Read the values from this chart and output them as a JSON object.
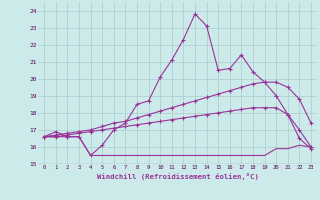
{
  "xlabel": "Windchill (Refroidissement éolien,°C)",
  "background_color": "#cceaea",
  "grid_color": "#aacccc",
  "line_color": "#993399",
  "ylim": [
    15,
    24.5
  ],
  "xlim": [
    -0.5,
    23.5
  ],
  "yticks": [
    15,
    16,
    17,
    18,
    19,
    20,
    21,
    22,
    23,
    24
  ],
  "xticks": [
    0,
    1,
    2,
    3,
    4,
    5,
    6,
    7,
    8,
    9,
    10,
    11,
    12,
    13,
    14,
    15,
    16,
    17,
    18,
    19,
    20,
    21,
    22,
    23
  ],
  "series": [
    [
      16.6,
      16.9,
      16.6,
      16.6,
      15.5,
      16.1,
      17.0,
      17.4,
      18.5,
      18.7,
      20.1,
      21.1,
      22.3,
      23.8,
      23.1,
      20.5,
      20.6,
      21.4,
      20.4,
      19.8,
      19.0,
      17.9,
      16.5,
      15.9
    ],
    [
      16.6,
      16.6,
      16.6,
      16.6,
      15.5,
      15.5,
      15.5,
      15.5,
      15.5,
      15.5,
      15.5,
      15.5,
      15.5,
      15.5,
      15.5,
      15.5,
      15.5,
      15.5,
      15.5,
      15.5,
      15.9,
      15.9,
      16.1,
      16.0
    ],
    [
      16.6,
      16.7,
      16.8,
      16.9,
      17.0,
      17.2,
      17.4,
      17.5,
      17.7,
      17.9,
      18.1,
      18.3,
      18.5,
      18.7,
      18.9,
      19.1,
      19.3,
      19.5,
      19.7,
      19.8,
      19.8,
      19.5,
      18.8,
      17.4
    ],
    [
      16.6,
      16.6,
      16.7,
      16.8,
      16.9,
      17.0,
      17.1,
      17.2,
      17.3,
      17.4,
      17.5,
      17.6,
      17.7,
      17.8,
      17.9,
      18.0,
      18.1,
      18.2,
      18.3,
      18.3,
      18.3,
      17.9,
      17.0,
      16.0
    ]
  ]
}
